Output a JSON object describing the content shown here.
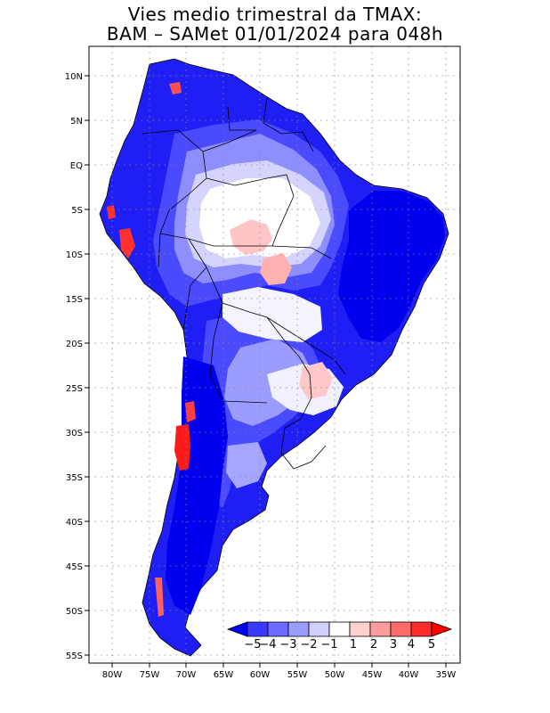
{
  "title_line1": "Vies medio trimestral da TMAX:",
  "title_line2": "BAM – SAMet 01/01/2024  para 048h",
  "lat_labels": [
    "10N",
    "5N",
    "EQ",
    "5S",
    "10S",
    "15S",
    "20S",
    "25S",
    "30S",
    "35S",
    "40S",
    "45S",
    "50S",
    "55S"
  ],
  "lon_labels": [
    "80W",
    "75W",
    "70W",
    "65W",
    "60W",
    "55W",
    "50W",
    "45W",
    "40W",
    "35W"
  ],
  "colorbar": {
    "labels": [
      "−5",
      "−4",
      "−3",
      "−2",
      "−1",
      "1",
      "2",
      "3",
      "4",
      "5"
    ],
    "colors": [
      "#0000ff",
      "#3a3aff",
      "#6b6bff",
      "#9c9cff",
      "#d0d0ff",
      "#ffffff",
      "#ffd0d0",
      "#ff9c9c",
      "#ff6b6b",
      "#ff2b2b",
      "#ff0000"
    ]
  },
  "map_colors": {
    "strong_cold": "#0000f0",
    "cold": "#4646ff",
    "mild_cold": "#8a8aff",
    "light_cold": "#c8c8ff",
    "neutral": "#ffffff",
    "light_warm": "#ffc8c8",
    "warm": "#ff7a7a",
    "hot": "#ff1a1a"
  }
}
